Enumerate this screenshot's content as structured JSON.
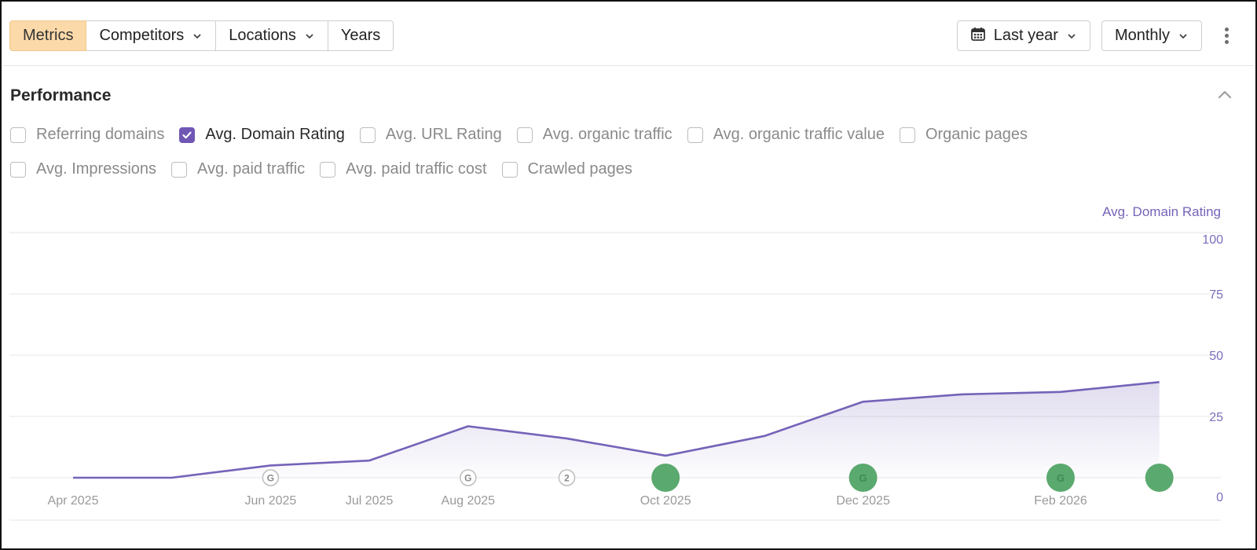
{
  "toolbar": {
    "tabs": [
      {
        "label": "Metrics",
        "active": true,
        "dropdown": false
      },
      {
        "label": "Competitors",
        "active": false,
        "dropdown": true
      },
      {
        "label": "Locations",
        "active": false,
        "dropdown": true
      },
      {
        "label": "Years",
        "active": false,
        "dropdown": false
      }
    ],
    "period": {
      "label": "Last year",
      "icon": "calendar-icon"
    },
    "granularity": {
      "label": "Monthly"
    },
    "more_icon": "kebab-menu-icon"
  },
  "performance": {
    "title": "Performance",
    "collapse_icon": "chevron-up-icon",
    "metrics_row1": [
      {
        "label": "Referring domains",
        "checked": false
      },
      {
        "label": "Avg. Domain Rating",
        "checked": true
      },
      {
        "label": "Avg. URL Rating",
        "checked": false
      },
      {
        "label": "Avg. organic traffic",
        "checked": false
      },
      {
        "label": "Avg. organic traffic value",
        "checked": false
      },
      {
        "label": "Organic pages",
        "checked": false
      }
    ],
    "metrics_row2": [
      {
        "label": "Avg. Impressions",
        "checked": false
      },
      {
        "label": "Avg. paid traffic",
        "checked": false
      },
      {
        "label": "Avg. paid traffic cost",
        "checked": false
      },
      {
        "label": "Crawled pages",
        "checked": false
      }
    ]
  },
  "colors": {
    "accent": "#7057b4",
    "line": "#7563b8",
    "active_tab": "#fcd9a9",
    "marker_green": "#5aa96e",
    "marker_grey": "#bdbdbd"
  },
  "chart_data": {
    "type": "area",
    "series": [
      {
        "name": "Avg. Domain Rating",
        "x": [
          "Apr 2025",
          "May 2025",
          "Jun 2025",
          "Jul 2025",
          "Aug 2025",
          "Sep 2025",
          "Oct 2025",
          "Nov 2025",
          "Dec 2025",
          "Jan 2026",
          "Feb 2026",
          "Mar 2026"
        ],
        "values": [
          0,
          0,
          5,
          7,
          21,
          16,
          9,
          17,
          31,
          34,
          35,
          39
        ]
      }
    ],
    "xticks": [
      "Apr 2025",
      "Jun 2025",
      "Jul 2025",
      "Aug 2025",
      "Oct 2025",
      "Dec 2025",
      "Feb 2026"
    ],
    "ylabel": "Avg. Domain Rating",
    "yticks": [
      0,
      25,
      50,
      75,
      100
    ],
    "ylim": [
      0,
      100
    ],
    "grid": true,
    "annotations": [
      {
        "x": "Jun 2025",
        "label": "G",
        "style": "outline"
      },
      {
        "x": "Aug 2025",
        "label": "G",
        "style": "outline"
      },
      {
        "x": "Sep 2025",
        "label": "2",
        "style": "outline"
      },
      {
        "x": "Oct 2025",
        "label": "",
        "style": "filled"
      },
      {
        "x": "Dec 2025",
        "label": "G",
        "style": "filled"
      },
      {
        "x": "Feb 2026",
        "label": "G",
        "style": "filled"
      },
      {
        "x": "Mar 2026",
        "label": "",
        "style": "filled"
      }
    ]
  }
}
